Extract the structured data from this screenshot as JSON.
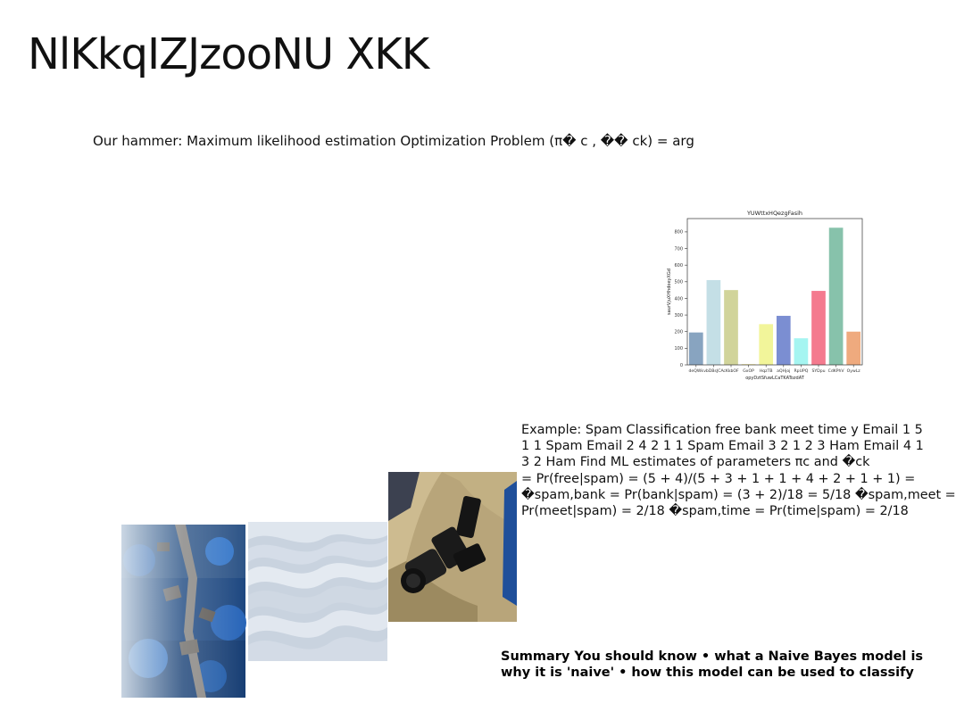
{
  "slide": {
    "title": "NlKkqIZJzooNU XKK",
    "hammer_text": "Our hammer: Maximum likelihood estimation Optimization Problem (π� c , �� ck) = arg",
    "example_lines": [
      "Example: Spam Classification free bank meet time y Email 1 5",
      "1 1 Spam Email 2 4 2 1 1 Spam Email 3 2 1 2 3 Ham Email 4 1",
      "3 2 Ham Find ML estimates of parameters πc and �ck",
      "= Pr(free|spam) = (5 + 4)/(5 + 3 + 1 + 1 + 4 + 2 + 1 + 1) =",
      "�spam,bank = Pr(bank|spam) = (3 + 2)/18 = 5/18 �spam,meet =",
      "Pr(meet|spam) = 2/18 �spam,time = Pr(time|spam) = 2/18"
    ],
    "summary_lines": [
      "Summary You should know • what a Naive Bayes model is",
      "why it is 'naive' • how this model can be used to classify"
    ]
  },
  "chart_data": {
    "type": "bar",
    "title": "YUWttxHQezgFasih",
    "xlabel": "opyDztSfuwLCaTKATozdAT",
    "ylabel": "saurVjuXHhdoeyXGd",
    "categories": [
      "deQWk",
      "vbDBsJCA",
      "cKkbOF",
      "GxOP",
      "HqzTB",
      "aQHjoj",
      "RpUPQ",
      "SYDpu",
      "CdKPhV",
      "OywLz"
    ],
    "values": [
      195,
      510,
      450,
      5,
      245,
      295,
      160,
      445,
      825,
      200
    ],
    "colors": [
      "#88a4c0",
      "#c4dfe6",
      "#d1d49a",
      "#f8f0b0",
      "#f2f59a",
      "#7b8ed2",
      "#a5f5f1",
      "#f47a8e",
      "#87c2ab",
      "#efaa7e"
    ],
    "ylim": [
      0,
      880
    ],
    "yticks": [
      0,
      100,
      200,
      300,
      400,
      500,
      600,
      700,
      800
    ],
    "grid": false
  }
}
